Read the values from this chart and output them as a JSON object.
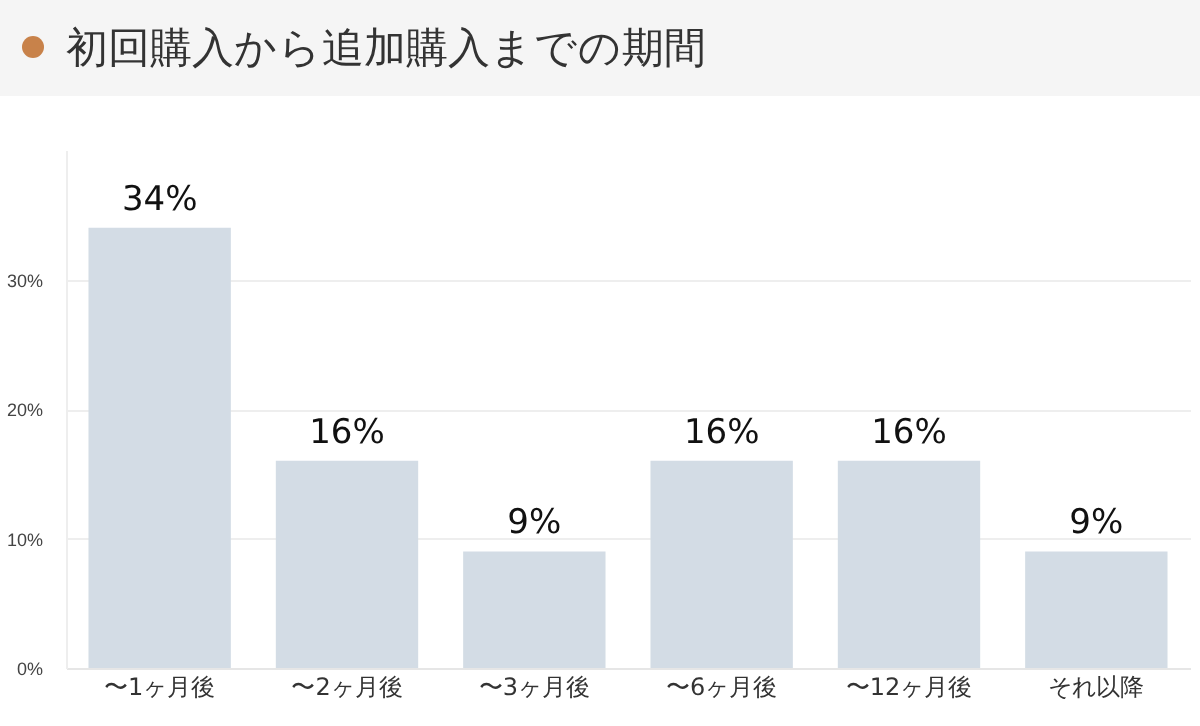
{
  "chart_data": {
    "type": "bar",
    "title": "初回購入から追加購入までの期間",
    "categories": [
      "〜1ヶ月後",
      "〜2ヶ月後",
      "〜3ヶ月後",
      "〜6ヶ月後",
      "〜12ヶ月後",
      "それ以降"
    ],
    "values": [
      34,
      16,
      9,
      16,
      16,
      9
    ],
    "value_labels": [
      "34%",
      "16%",
      "9%",
      "16%",
      "16%",
      "9%"
    ],
    "color": "#d3dce5",
    "ylim": [
      0,
      40
    ],
    "yticks": [
      {
        "value": 0,
        "label": "0%"
      },
      {
        "value": 10,
        "label": "10%"
      },
      {
        "value": 20,
        "label": "20%"
      },
      {
        "value": 30,
        "label": "30%"
      }
    ],
    "grid": "y"
  }
}
